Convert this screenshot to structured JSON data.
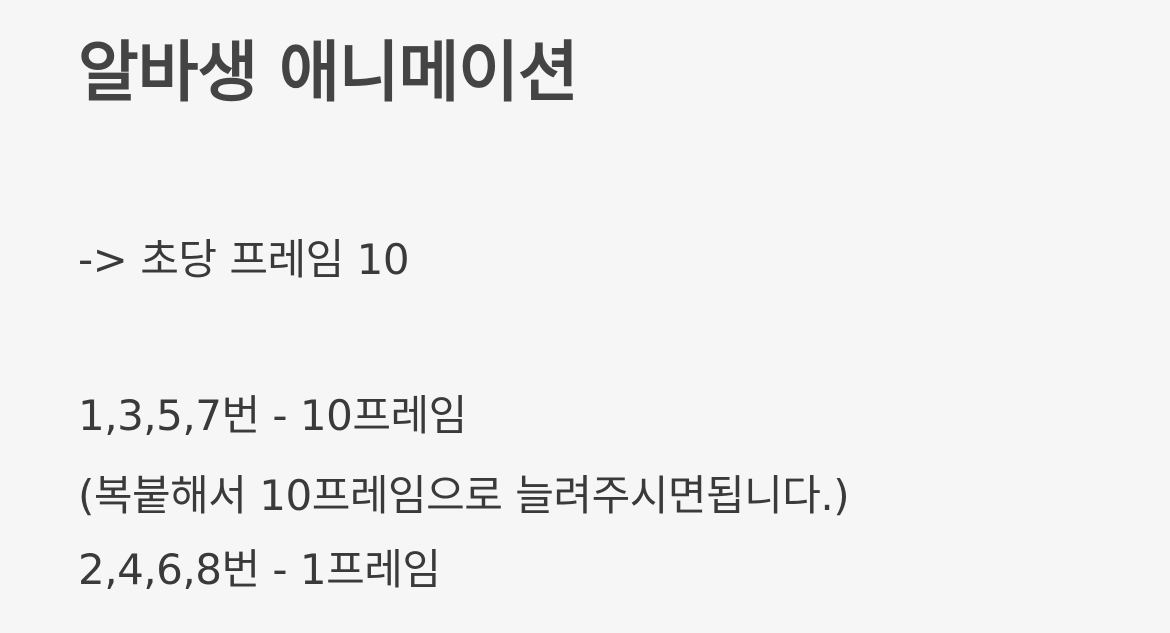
{
  "document": {
    "title": "알바생 애니메이션",
    "lines": [
      "-> 초당 프레임 10",
      "1,3,5,7번 - 10프레임",
      "(복붙해서 10프레임으로 늘려주시면됩니다.)",
      "2,4,6,8번 - 1프레임"
    ]
  },
  "colors": {
    "background": "#f6f6f6",
    "title_text": "#444444",
    "body_text": "#3a3a3a"
  }
}
